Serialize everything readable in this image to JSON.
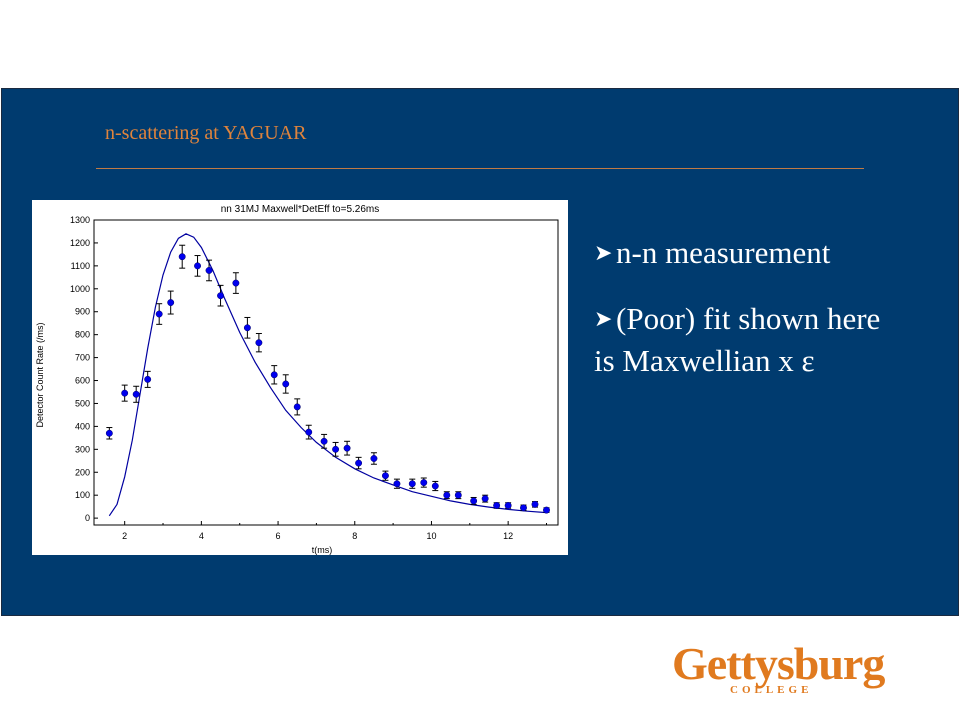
{
  "slide": {
    "title": "n-scattering at YAGUAR",
    "bullets": [
      {
        "line1": "n-n measurement",
        "line2": ""
      },
      {
        "line1": "(Poor) fit shown here",
        "line2": "is  Maxwellian x ε"
      }
    ],
    "logo": {
      "word": "Gettysburg",
      "sub": "COLLEGE"
    }
  },
  "colors": {
    "slide_bg": "#003B6F",
    "title": "#E0843C",
    "data": "#0000EE",
    "fit": "#0000A0",
    "logo": "#E07A1F"
  },
  "chart_data": {
    "type": "scatter",
    "title": "nn  31MJ   Maxwell*DetEff       to=5.26ms",
    "xlabel": "t(ms)",
    "ylabel": "Detector Count Rate (/ms)",
    "xlim": [
      1.2,
      13.3
    ],
    "ylim": [
      -30,
      1300
    ],
    "xticks": [
      2,
      4,
      6,
      8,
      10,
      12
    ],
    "yticks": [
      0,
      100,
      200,
      300,
      400,
      500,
      600,
      700,
      800,
      900,
      1000,
      1100,
      1200,
      1300
    ],
    "series": [
      {
        "kind": "points_with_errorbars",
        "x": [
          1.6,
          2.0,
          2.3,
          2.6,
          2.9,
          3.2,
          3.5,
          3.9,
          4.2,
          4.5,
          4.9,
          5.2,
          5.5,
          5.9,
          6.2,
          6.5,
          6.8,
          7.2,
          7.5,
          7.8,
          8.1,
          8.5,
          8.8,
          9.1,
          9.5,
          9.8,
          10.1,
          10.4,
          10.7,
          11.1,
          11.4,
          11.7,
          12.0,
          12.4,
          12.7,
          13.0
        ],
        "y": [
          370,
          545,
          540,
          605,
          890,
          940,
          1140,
          1100,
          1080,
          970,
          1025,
          830,
          765,
          625,
          585,
          485,
          375,
          335,
          300,
          305,
          240,
          260,
          185,
          150,
          150,
          155,
          140,
          100,
          100,
          75,
          85,
          55,
          55,
          45,
          60,
          35
        ],
        "err": [
          25,
          35,
          35,
          35,
          45,
          50,
          50,
          45,
          45,
          45,
          45,
          45,
          40,
          40,
          40,
          35,
          30,
          30,
          30,
          30,
          25,
          25,
          20,
          20,
          20,
          20,
          20,
          15,
          15,
          15,
          15,
          12,
          12,
          12,
          12,
          10
        ]
      },
      {
        "kind": "fit_line",
        "x": [
          1.6,
          1.8,
          2.0,
          2.2,
          2.4,
          2.6,
          2.8,
          3.0,
          3.2,
          3.4,
          3.6,
          3.8,
          4.0,
          4.3,
          4.6,
          5.0,
          5.4,
          5.8,
          6.2,
          6.6,
          7.0,
          7.5,
          8.0,
          8.5,
          9.0,
          9.5,
          10.0,
          10.5,
          11.0,
          11.5,
          12.0,
          12.5,
          13.0
        ],
        "y": [
          10,
          60,
          180,
          340,
          540,
          740,
          920,
          1060,
          1160,
          1220,
          1240,
          1225,
          1180,
          1080,
          960,
          810,
          680,
          570,
          470,
          395,
          330,
          265,
          215,
          175,
          145,
          115,
          95,
          75,
          60,
          48,
          38,
          30,
          24
        ]
      }
    ]
  }
}
